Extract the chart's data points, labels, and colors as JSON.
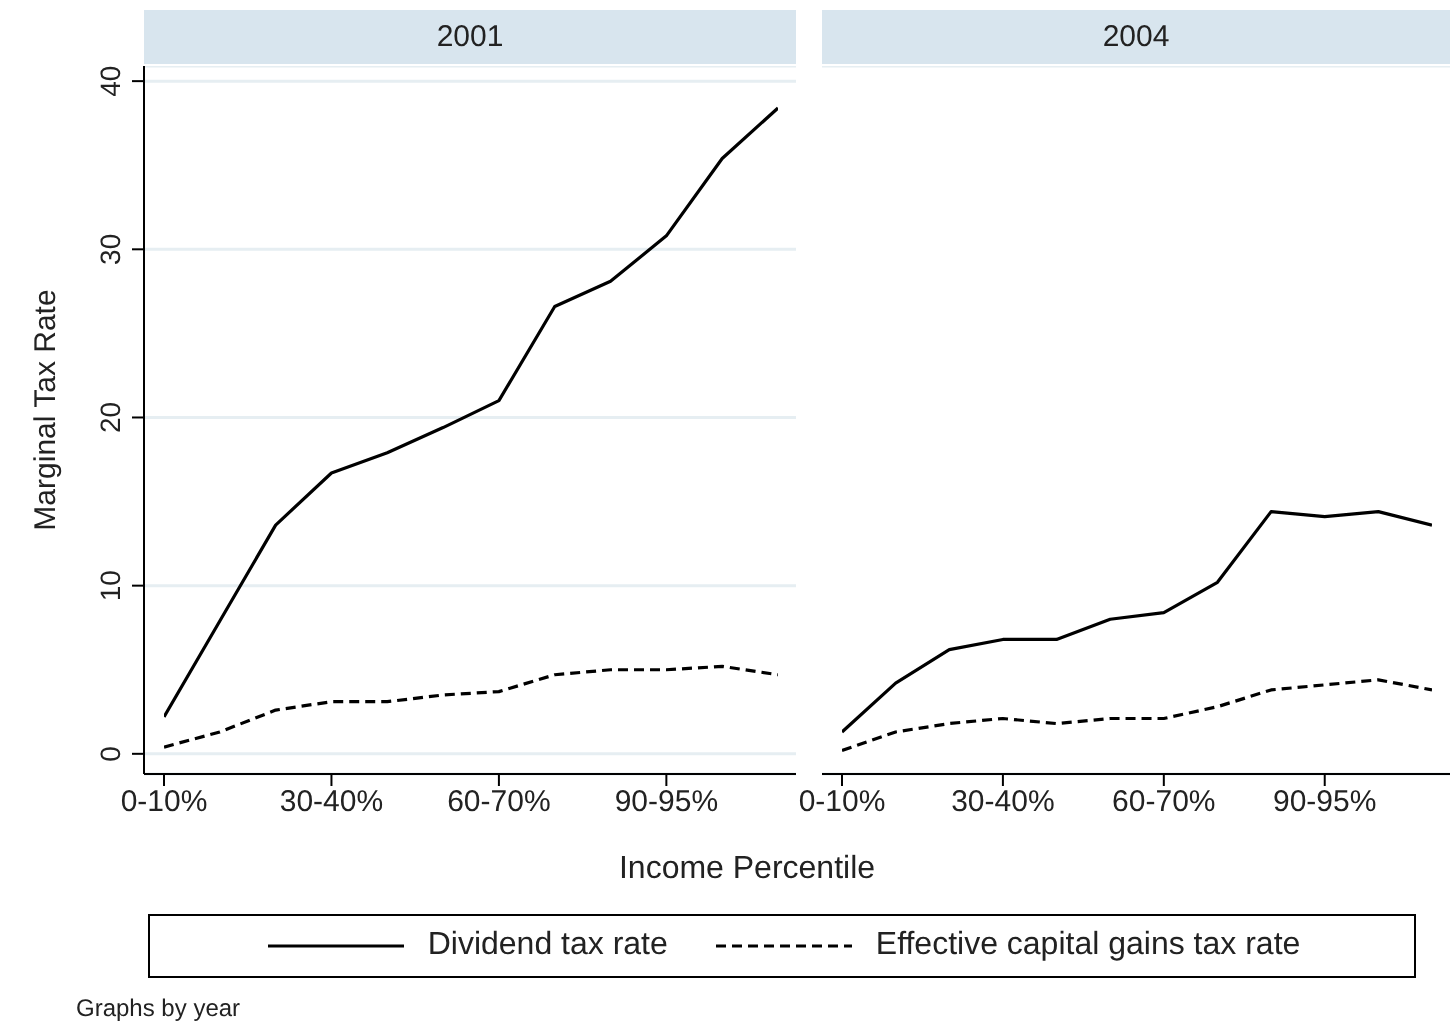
{
  "chart_data": [
    {
      "type": "line",
      "title": "2001",
      "xlabel": "Income Percentile",
      "ylabel": "Marginal Tax Rate",
      "categories": [
        "0-10%",
        null,
        null,
        "30-40%",
        null,
        null,
        "60-70%",
        null,
        null,
        "90-95%",
        null,
        null
      ],
      "series": [
        {
          "name": "Dividend tax rate",
          "color": "#000000",
          "line_style": "solid",
          "values": [
            2.2,
            7.9,
            13.6,
            16.7,
            17.9,
            19.4,
            21.0,
            26.6,
            28.1,
            30.8,
            35.4,
            38.4
          ]
        },
        {
          "name": "Effective capital gains tax rate",
          "color": "#000000",
          "line_style": "dashed",
          "values": [
            0.4,
            1.3,
            2.6,
            3.1,
            3.1,
            3.5,
            3.7,
            4.7,
            5.0,
            5.0,
            5.2,
            4.7
          ]
        }
      ],
      "ylim": [
        -1.2,
        40.9
      ],
      "yticks": [
        0,
        10,
        20,
        30,
        40
      ],
      "grid": "y",
      "legend": "bottom",
      "marker": "none",
      "annotations": [
        "Graphs by year"
      ]
    },
    {
      "type": "line",
      "title": "2004",
      "categories": [
        "0-10%",
        null,
        null,
        "30-40%",
        null,
        null,
        "60-70%",
        null,
        null,
        "90-95%",
        null,
        null
      ],
      "series": [
        {
          "color": "#000000",
          "line_style": "solid",
          "values": [
            1.3,
            4.2,
            6.2,
            6.8,
            6.8,
            8.0,
            8.4,
            10.2,
            14.4,
            14.1,
            14.4,
            13.6
          ]
        },
        {
          "color": "#000000",
          "line_style": "dashed",
          "values": [
            0.2,
            1.3,
            1.8,
            2.1,
            1.8,
            2.1,
            2.1,
            2.8,
            3.8,
            4.1,
            4.4,
            3.8
          ]
        }
      ],
      "ylim": [
        -1.2,
        40.9
      ],
      "yticks": [
        0,
        10,
        20,
        30,
        40
      ],
      "grid": "y",
      "tick_labels": "x",
      "marker": "none"
    }
  ]
}
